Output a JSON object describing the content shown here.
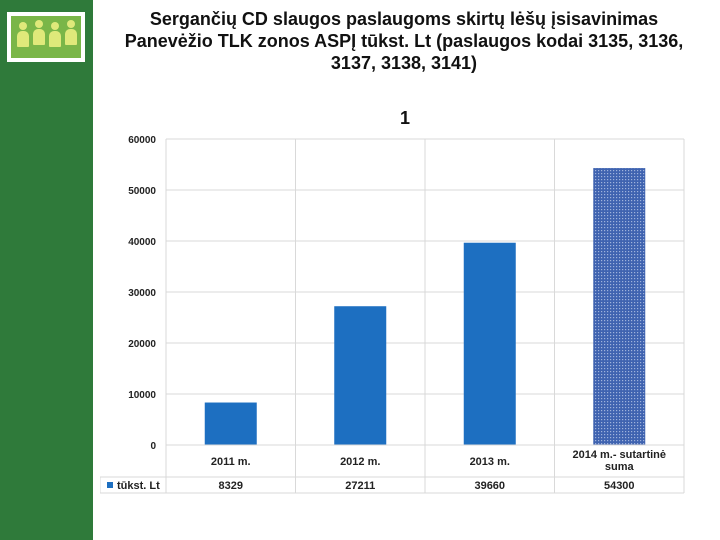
{
  "slide": {
    "title": "Sergančių CD slaugos paslaugoms skirtų lėšų įsisavinimas Panevėžio TLK zonos ASPĮ tūkst. Lt (paslaugos kodai 3135, 3136, 3137, 3138, 3141)",
    "chart_number": "1",
    "sidebar_color": "#2f7a3a"
  },
  "chart_data": {
    "type": "bar",
    "title": "",
    "xlabel": "",
    "ylabel": "",
    "categories": [
      "2011 m.",
      "2012 m.",
      "2013 m.",
      "2014 m.- sutartinė suma"
    ],
    "series": [
      {
        "name": "tūkst. Lt",
        "values": [
          8329,
          27211,
          39660,
          54300
        ]
      }
    ],
    "data_table_values": [
      "8329",
      "27211",
      "39660",
      "54300"
    ],
    "ylim": [
      0,
      60000
    ],
    "yticks": [
      "0",
      "10000",
      "20000",
      "30000",
      "40000",
      "50000",
      "60000"
    ],
    "grid": true,
    "legend": "in data table",
    "colors": {
      "bar": "#1d6fc1",
      "highlight_bar": "#3f63b0",
      "grid": "#d9d9d9"
    }
  }
}
